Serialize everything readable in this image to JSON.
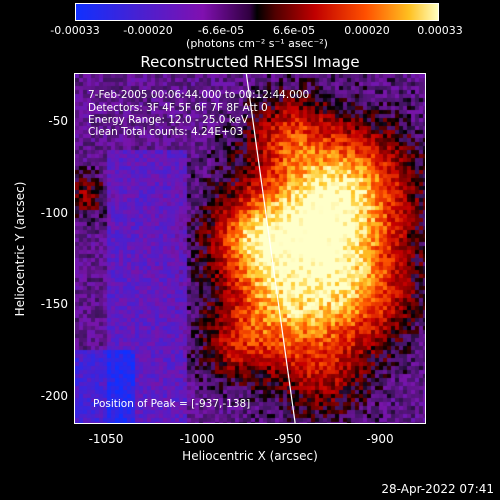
{
  "colorbar": {
    "ticks": [
      "-0.00033",
      "-0.00020",
      "-6.6e-05",
      "6.6e-05",
      "0.00020",
      "0.00033"
    ],
    "units": "(photons cm⁻² s⁻¹ asec⁻²)"
  },
  "title": "Reconstructed RHESSI Image",
  "annotations": {
    "time": "7-Feb-2005 00:06:44.000 to 00:12:44.000",
    "detectors": "Detectors: 3F 4F 5F 6F 7F 8F  Att 0",
    "energy": "Energy Range: 12.0 - 25.0 keV",
    "clean": "Clean     Total counts: 4.24E+03",
    "peak": "Position of Peak = [-937,-138]"
  },
  "timestamp": "28-Apr-2022 07:41",
  "chart_data": {
    "type": "heatmap",
    "title": "Reconstructed RHESSI Image",
    "xlabel": "Heliocentric X (arcsec)",
    "ylabel": "Heliocentric Y (arcsec)",
    "xlim": [
      -1072,
      -878
    ],
    "ylim": [
      -222,
      -29
    ],
    "xticks": [
      -1050,
      -1000,
      -950,
      -900
    ],
    "yticks": [
      -50,
      -100,
      -150,
      -200
    ],
    "colorbar_range": [
      -0.00033,
      0.00033
    ],
    "peak_position": [
      -937,
      -138
    ],
    "limb_curve": {
      "x_top": -977,
      "x_bottom": -950
    },
    "grid": false
  }
}
